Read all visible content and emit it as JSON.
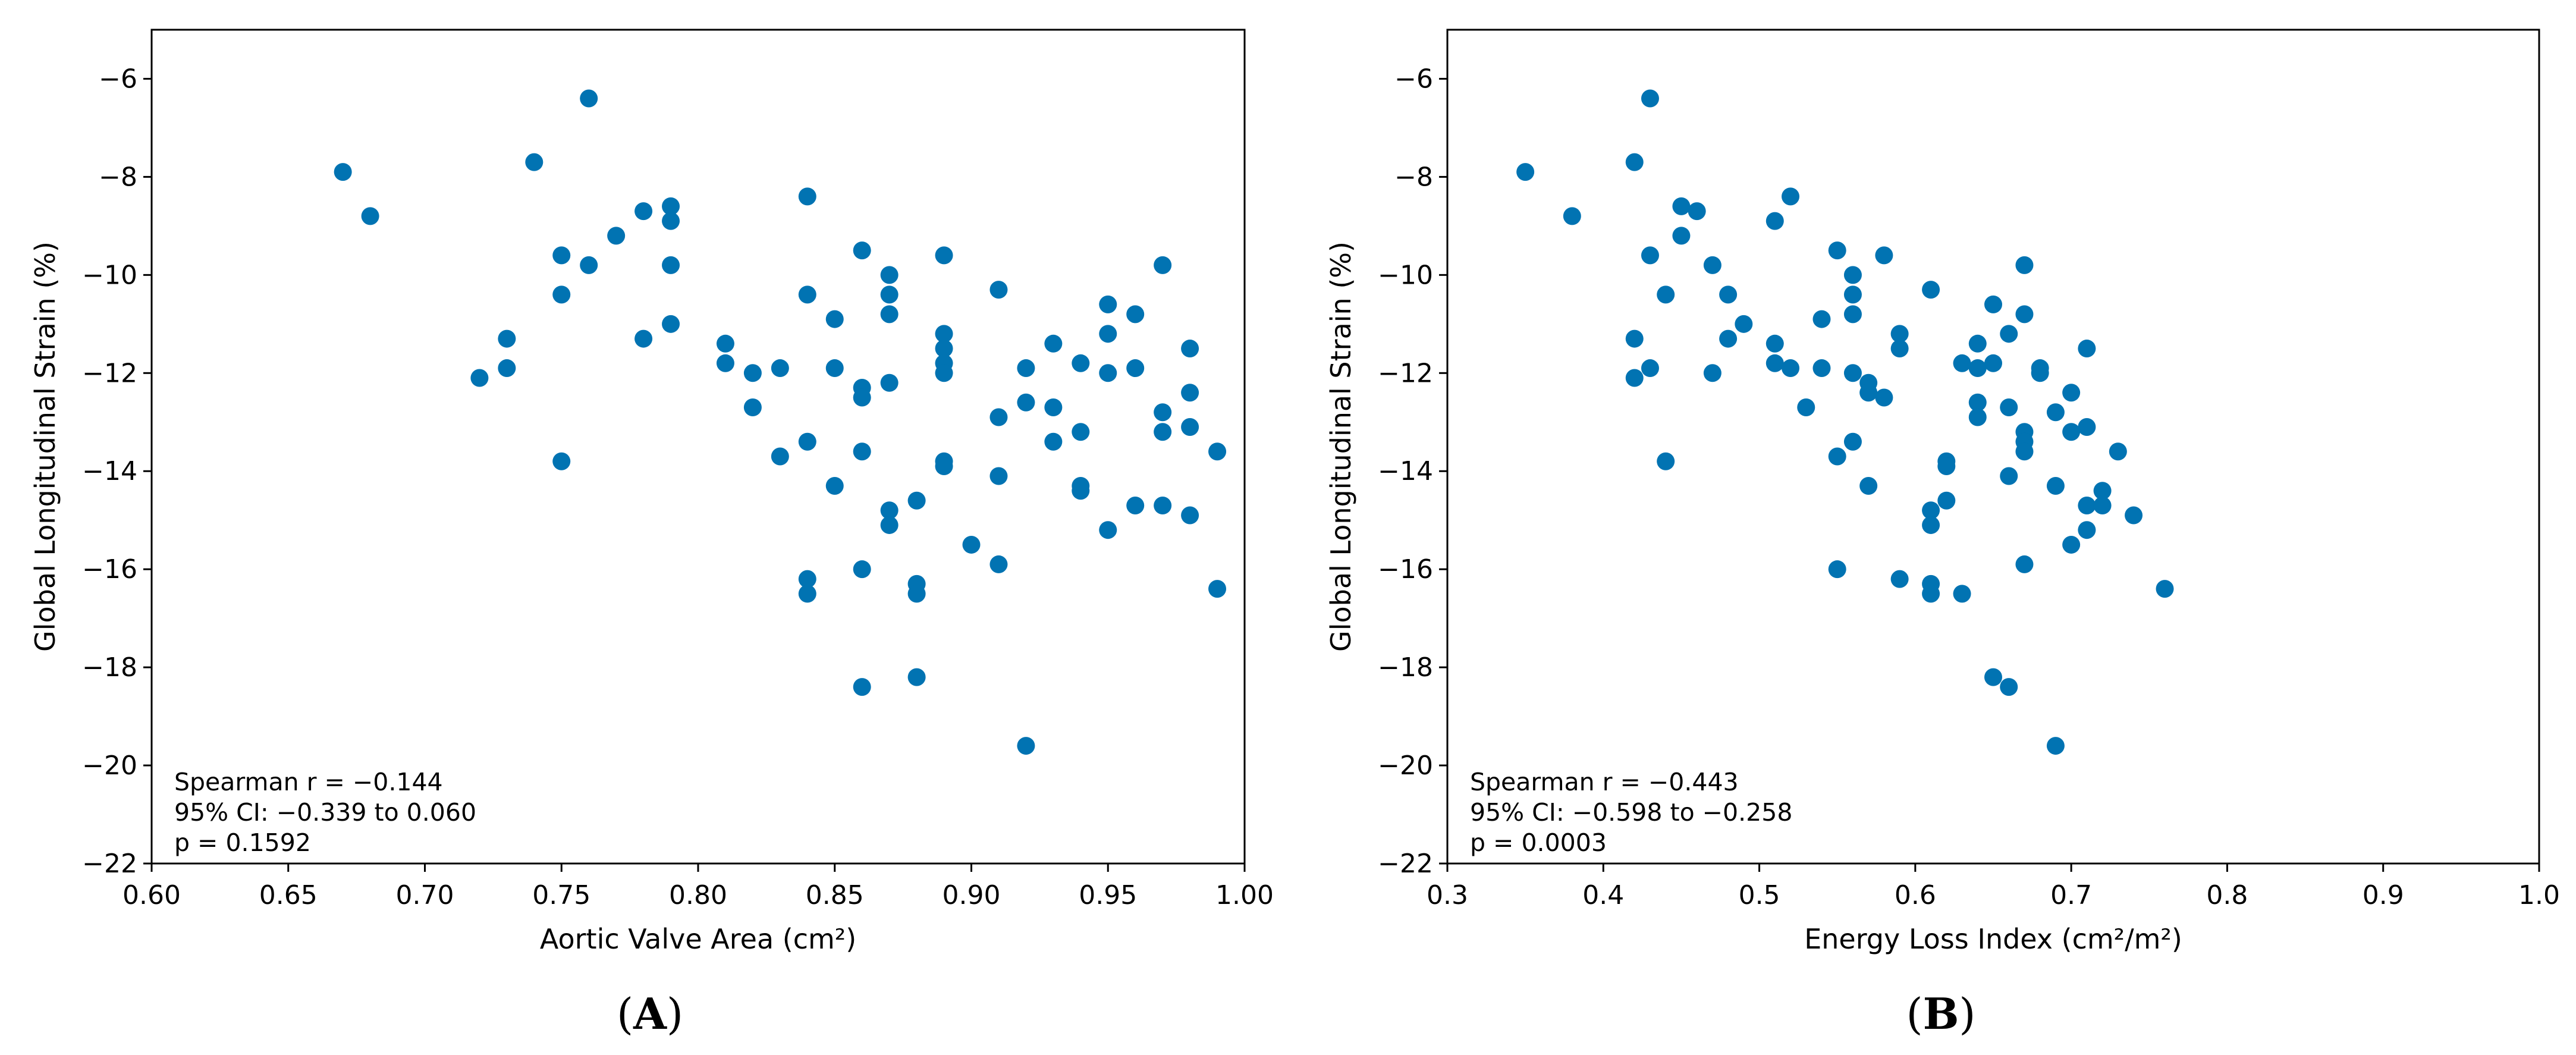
{
  "chart_data": [
    {
      "type": "scatter",
      "panel_label": "A",
      "xlabel": "Aortic Valve Area (cm²)",
      "ylabel": "Global Longitudinal Strain (%)",
      "xlim": [
        0.6,
        1.0
      ],
      "ylim": [
        -22,
        -5
      ],
      "xticks": [
        0.6,
        0.65,
        0.7,
        0.75,
        0.8,
        0.85,
        0.9,
        0.95,
        1.0
      ],
      "xtick_labels": [
        "0.60",
        "0.65",
        "0.70",
        "0.75",
        "0.80",
        "0.85",
        "0.90",
        "0.95",
        "1.00"
      ],
      "yticks": [
        -6,
        -8,
        -10,
        -12,
        -14,
        -16,
        -18,
        -20,
        -22
      ],
      "ytick_labels": [
        "−6",
        "−8",
        "−10",
        "−12",
        "−14",
        "−16",
        "−18",
        "−20",
        "−22"
      ],
      "marker_color": "#0173b2",
      "annotations": [
        "Spearman r = −0.144",
        "95% CI: −0.339 to 0.060",
        "p = 0.1592"
      ],
      "points": [
        [
          0.67,
          -7.9
        ],
        [
          0.68,
          -8.8
        ],
        [
          0.72,
          -12.1
        ],
        [
          0.73,
          -11.3
        ],
        [
          0.73,
          -11.9
        ],
        [
          0.74,
          -7.7
        ],
        [
          0.75,
          -9.6
        ],
        [
          0.75,
          -10.4
        ],
        [
          0.75,
          -13.8
        ],
        [
          0.76,
          -6.4
        ],
        [
          0.76,
          -9.8
        ],
        [
          0.77,
          -9.2
        ],
        [
          0.78,
          -8.7
        ],
        [
          0.78,
          -11.3
        ],
        [
          0.79,
          -8.6
        ],
        [
          0.79,
          -8.9
        ],
        [
          0.79,
          -9.8
        ],
        [
          0.79,
          -11.0
        ],
        [
          0.81,
          -11.4
        ],
        [
          0.81,
          -11.8
        ],
        [
          0.82,
          -12.0
        ],
        [
          0.82,
          -12.7
        ],
        [
          0.83,
          -11.9
        ],
        [
          0.83,
          -13.7
        ],
        [
          0.84,
          -8.4
        ],
        [
          0.84,
          -10.4
        ],
        [
          0.84,
          -13.4
        ],
        [
          0.84,
          -16.2
        ],
        [
          0.84,
          -16.5
        ],
        [
          0.85,
          -10.9
        ],
        [
          0.85,
          -11.9
        ],
        [
          0.85,
          -14.3
        ],
        [
          0.86,
          -9.5
        ],
        [
          0.86,
          -12.3
        ],
        [
          0.86,
          -12.5
        ],
        [
          0.86,
          -13.6
        ],
        [
          0.86,
          -16.0
        ],
        [
          0.86,
          -18.4
        ],
        [
          0.87,
          -10.0
        ],
        [
          0.87,
          -10.4
        ],
        [
          0.87,
          -10.8
        ],
        [
          0.87,
          -12.2
        ],
        [
          0.87,
          -14.8
        ],
        [
          0.87,
          -15.1
        ],
        [
          0.88,
          -14.6
        ],
        [
          0.88,
          -16.3
        ],
        [
          0.88,
          -16.5
        ],
        [
          0.88,
          -18.2
        ],
        [
          0.89,
          -9.6
        ],
        [
          0.89,
          -11.2
        ],
        [
          0.89,
          -11.5
        ],
        [
          0.89,
          -11.8
        ],
        [
          0.89,
          -12.0
        ],
        [
          0.89,
          -13.8
        ],
        [
          0.89,
          -13.9
        ],
        [
          0.9,
          -15.5
        ],
        [
          0.91,
          -10.3
        ],
        [
          0.91,
          -12.9
        ],
        [
          0.91,
          -14.1
        ],
        [
          0.91,
          -15.9
        ],
        [
          0.92,
          -11.9
        ],
        [
          0.92,
          -12.6
        ],
        [
          0.92,
          -19.6
        ],
        [
          0.93,
          -11.4
        ],
        [
          0.93,
          -12.7
        ],
        [
          0.93,
          -13.4
        ],
        [
          0.94,
          -11.8
        ],
        [
          0.94,
          -13.2
        ],
        [
          0.94,
          -14.3
        ],
        [
          0.94,
          -14.4
        ],
        [
          0.95,
          -10.6
        ],
        [
          0.95,
          -11.2
        ],
        [
          0.95,
          -12.0
        ],
        [
          0.95,
          -15.2
        ],
        [
          0.96,
          -10.8
        ],
        [
          0.96,
          -11.9
        ],
        [
          0.96,
          -14.7
        ],
        [
          0.97,
          -9.8
        ],
        [
          0.97,
          -12.8
        ],
        [
          0.97,
          -13.2
        ],
        [
          0.97,
          -14.7
        ],
        [
          0.98,
          -11.5
        ],
        [
          0.98,
          -12.4
        ],
        [
          0.98,
          -13.1
        ],
        [
          0.98,
          -14.9
        ],
        [
          0.99,
          -13.6
        ],
        [
          0.99,
          -16.4
        ]
      ]
    },
    {
      "type": "scatter",
      "panel_label": "B",
      "xlabel": "Energy Loss Index (cm²/m²)",
      "ylabel": "Global Longitudinal Strain (%)",
      "xlim": [
        0.3,
        1.0
      ],
      "ylim": [
        -22,
        -5
      ],
      "xticks": [
        0.3,
        0.4,
        0.5,
        0.6,
        0.7,
        0.8,
        0.9,
        1.0
      ],
      "xtick_labels": [
        "0.3",
        "0.4",
        "0.5",
        "0.6",
        "0.7",
        "0.8",
        "0.9",
        "1.0"
      ],
      "yticks": [
        -6,
        -8,
        -10,
        -12,
        -14,
        -16,
        -18,
        -20,
        -22
      ],
      "ytick_labels": [
        "−6",
        "−8",
        "−10",
        "−12",
        "−14",
        "−16",
        "−18",
        "−20",
        "−22"
      ],
      "marker_color": "#0173b2",
      "annotations": [
        "Spearman r = −0.443",
        "95% CI: −0.598 to −0.258",
        "p = 0.0003"
      ],
      "points": [
        [
          0.35,
          -7.9
        ],
        [
          0.38,
          -8.8
        ],
        [
          0.42,
          -7.7
        ],
        [
          0.42,
          -11.3
        ],
        [
          0.42,
          -12.1
        ],
        [
          0.43,
          -6.4
        ],
        [
          0.43,
          -9.6
        ],
        [
          0.43,
          -11.9
        ],
        [
          0.44,
          -10.4
        ],
        [
          0.44,
          -13.8
        ],
        [
          0.45,
          -8.6
        ],
        [
          0.45,
          -9.2
        ],
        [
          0.46,
          -8.7
        ],
        [
          0.47,
          -9.8
        ],
        [
          0.47,
          -12.0
        ],
        [
          0.48,
          -10.4
        ],
        [
          0.48,
          -11.3
        ],
        [
          0.49,
          -11.0
        ],
        [
          0.51,
          -8.9
        ],
        [
          0.51,
          -11.4
        ],
        [
          0.51,
          -11.8
        ],
        [
          0.52,
          -8.4
        ],
        [
          0.52,
          -11.9
        ],
        [
          0.53,
          -12.7
        ],
        [
          0.54,
          -10.9
        ],
        [
          0.54,
          -11.9
        ],
        [
          0.55,
          -9.5
        ],
        [
          0.55,
          -13.7
        ],
        [
          0.55,
          -16.0
        ],
        [
          0.56,
          -10.0
        ],
        [
          0.56,
          -10.4
        ],
        [
          0.56,
          -10.8
        ],
        [
          0.56,
          -12.0
        ],
        [
          0.56,
          -13.4
        ],
        [
          0.57,
          -12.2
        ],
        [
          0.57,
          -12.4
        ],
        [
          0.57,
          -14.3
        ],
        [
          0.58,
          -9.6
        ],
        [
          0.58,
          -12.5
        ],
        [
          0.59,
          -11.2
        ],
        [
          0.59,
          -11.5
        ],
        [
          0.59,
          -16.2
        ],
        [
          0.61,
          -10.3
        ],
        [
          0.61,
          -14.8
        ],
        [
          0.61,
          -15.1
        ],
        [
          0.61,
          -16.3
        ],
        [
          0.61,
          -16.5
        ],
        [
          0.62,
          -13.8
        ],
        [
          0.62,
          -13.9
        ],
        [
          0.62,
          -14.6
        ],
        [
          0.63,
          -11.8
        ],
        [
          0.63,
          -16.5
        ],
        [
          0.64,
          -11.4
        ],
        [
          0.64,
          -11.9
        ],
        [
          0.64,
          -12.6
        ],
        [
          0.64,
          -12.9
        ],
        [
          0.65,
          -10.6
        ],
        [
          0.65,
          -11.8
        ],
        [
          0.65,
          -18.2
        ],
        [
          0.66,
          -11.2
        ],
        [
          0.66,
          -12.7
        ],
        [
          0.66,
          -14.1
        ],
        [
          0.66,
          -18.4
        ],
        [
          0.67,
          -9.8
        ],
        [
          0.67,
          -10.8
        ],
        [
          0.67,
          -13.2
        ],
        [
          0.67,
          -13.4
        ],
        [
          0.67,
          -13.6
        ],
        [
          0.67,
          -15.9
        ],
        [
          0.68,
          -11.9
        ],
        [
          0.68,
          -12.0
        ],
        [
          0.69,
          -12.8
        ],
        [
          0.69,
          -14.3
        ],
        [
          0.69,
          -19.6
        ],
        [
          0.7,
          -12.4
        ],
        [
          0.7,
          -13.2
        ],
        [
          0.7,
          -15.5
        ],
        [
          0.71,
          -11.5
        ],
        [
          0.71,
          -13.1
        ],
        [
          0.71,
          -14.7
        ],
        [
          0.71,
          -15.2
        ],
        [
          0.72,
          -14.4
        ],
        [
          0.72,
          -14.7
        ],
        [
          0.73,
          -13.6
        ],
        [
          0.74,
          -14.9
        ],
        [
          0.76,
          -16.4
        ]
      ]
    }
  ]
}
